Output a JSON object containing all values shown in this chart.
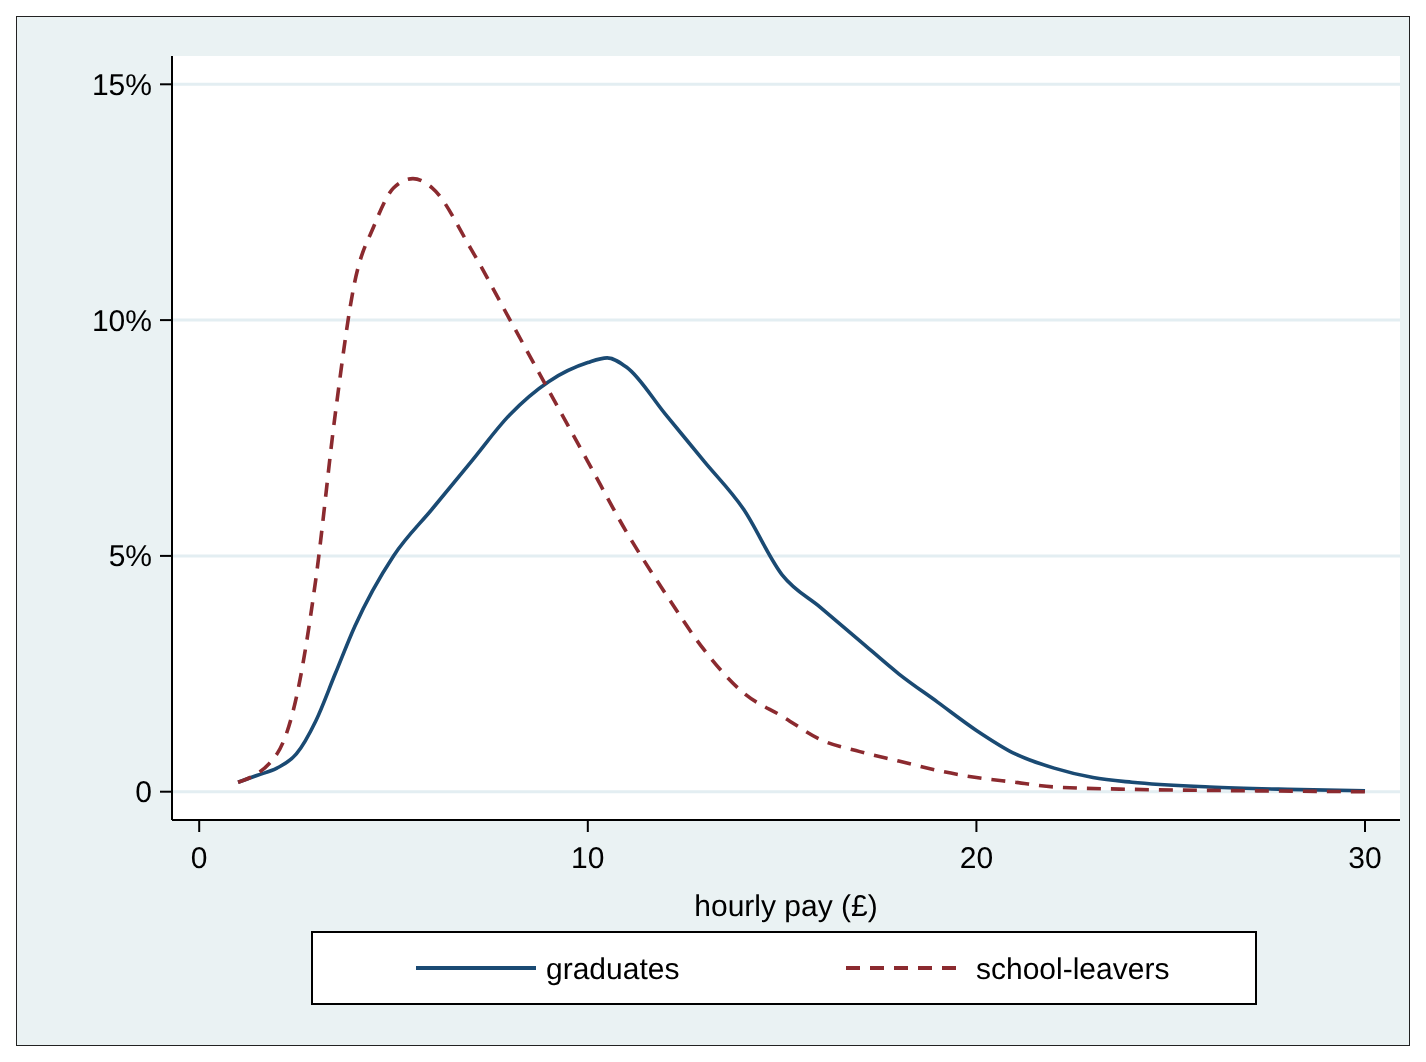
{
  "chart_data": {
    "type": "line",
    "xlabel": "hourly pay (£)",
    "xlim": [
      -0.7,
      30.9
    ],
    "xticks": [
      0,
      10,
      20,
      30
    ],
    "ylim": [
      -0.6,
      15.6
    ],
    "yticks": [
      {
        "value": 0,
        "label": "0"
      },
      {
        "value": 5,
        "label": "5%"
      },
      {
        "value": 10,
        "label": "10%"
      },
      {
        "value": 15,
        "label": "15%"
      }
    ],
    "grid": "y",
    "legend": "bottom",
    "series": [
      {
        "name": "graduates",
        "color": "#1a4a73",
        "line_style": "solid",
        "x": [
          1,
          1.5,
          2,
          2.5,
          3,
          3.5,
          4,
          5,
          6,
          7,
          8,
          9,
          10,
          10.5,
          11,
          12,
          13,
          14,
          15,
          16,
          17,
          18,
          19,
          20,
          21,
          22,
          23,
          24,
          26,
          28,
          30
        ],
        "values": [
          0.2,
          0.35,
          0.5,
          0.8,
          1.5,
          2.5,
          3.5,
          5.0,
          6.0,
          7.0,
          8.0,
          8.7,
          9.1,
          9.2,
          9.0,
          8.0,
          7.0,
          6.0,
          4.6,
          3.9,
          3.2,
          2.5,
          1.9,
          1.3,
          0.8,
          0.5,
          0.3,
          0.2,
          0.1,
          0.05,
          0.02
        ]
      },
      {
        "name": "school-leavers",
        "color": "#8b2a2f",
        "line_style": "dashed",
        "x": [
          1,
          2,
          2.5,
          3,
          3.5,
          4,
          4.5,
          5,
          5.5,
          6,
          7,
          8,
          9,
          10,
          11,
          12,
          13,
          14,
          15,
          16,
          17,
          18,
          19,
          20,
          21,
          22,
          24,
          27,
          30
        ],
        "values": [
          0.2,
          0.8,
          2,
          4.5,
          8,
          10.8,
          12,
          12.8,
          13.0,
          12.8,
          11.5,
          10,
          8.5,
          7,
          5.5,
          4.2,
          3.0,
          2.1,
          1.6,
          1.1,
          0.85,
          0.65,
          0.45,
          0.3,
          0.2,
          0.1,
          0.05,
          0.02,
          0
        ]
      }
    ]
  }
}
